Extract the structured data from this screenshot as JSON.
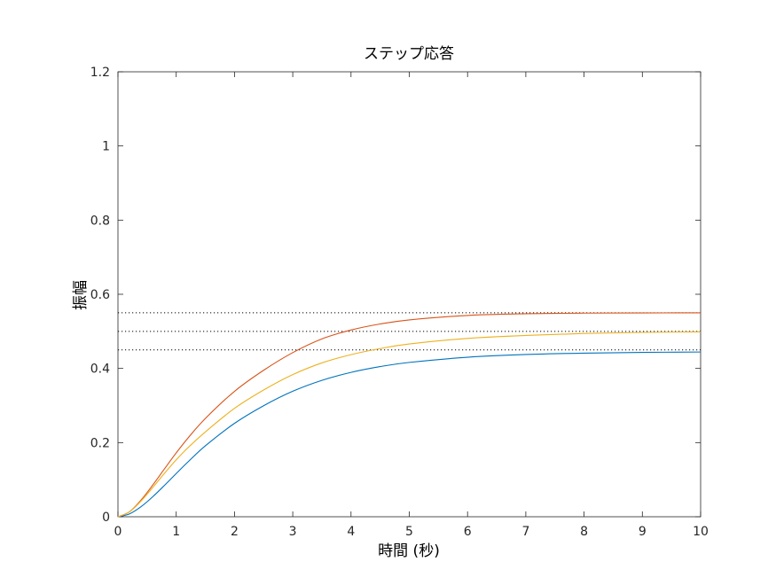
{
  "chart_data": {
    "type": "line",
    "title": "ステップ応答",
    "xlabel": "時間 (秒)",
    "ylabel": "振幅",
    "xlim": [
      0,
      10
    ],
    "ylim": [
      0,
      1.2
    ],
    "xticks": [
      0,
      1,
      2,
      3,
      4,
      5,
      6,
      7,
      8,
      9,
      10
    ],
    "xtick_labels": [
      "0",
      "1",
      "2",
      "3",
      "4",
      "5",
      "6",
      "7",
      "8",
      "9",
      "10"
    ],
    "yticks": [
      0,
      0.2,
      0.4,
      0.6,
      0.8,
      1,
      1.2
    ],
    "ytick_labels": [
      "0",
      "0.2",
      "0.4",
      "0.6",
      "0.8",
      "1",
      "1.2"
    ],
    "grid": false,
    "series": [
      {
        "color": "#0072BD",
        "steady_state": 0.45,
        "x": [
          0,
          0.2,
          0.4,
          0.6,
          0.8,
          1.0,
          1.2,
          1.5,
          2.0,
          2.5,
          3.0,
          3.5,
          4.0,
          4.5,
          5.0,
          6.0,
          7.0,
          8.0,
          9.0,
          10.0
        ],
        "values": [
          0,
          0.0079,
          0.0276,
          0.0544,
          0.0849,
          0.1166,
          0.1476,
          0.1913,
          0.2519,
          0.2995,
          0.3385,
          0.3679,
          0.3894,
          0.405,
          0.4162,
          0.4302,
          0.4375,
          0.4413,
          0.4433,
          0.4443
        ]
      },
      {
        "color": "#D95319",
        "steady_state": 0.55,
        "x": [
          0,
          0.2,
          0.4,
          0.6,
          0.8,
          1.0,
          1.2,
          1.5,
          2.0,
          2.5,
          3.0,
          3.5,
          4.0,
          4.5,
          5.0,
          6.0,
          7.0,
          8.0,
          9.0,
          10.0
        ],
        "values": [
          0,
          0.0137,
          0.0458,
          0.0861,
          0.1295,
          0.1722,
          0.2119,
          0.265,
          0.3382,
          0.395,
          0.4427,
          0.4797,
          0.5036,
          0.5199,
          0.5309,
          0.5429,
          0.5475,
          0.5492,
          0.5497,
          0.5499
        ]
      },
      {
        "color": "#EDB120",
        "steady_state": 0.5,
        "x": [
          0,
          0.2,
          0.4,
          0.6,
          0.8,
          1.0,
          1.2,
          1.5,
          2.0,
          2.5,
          3.0,
          3.5,
          4.0,
          4.5,
          5.0,
          6.0,
          7.0,
          8.0,
          9.0,
          10.0
        ],
        "values": [
          0,
          0.0132,
          0.043,
          0.0795,
          0.1175,
          0.1536,
          0.186,
          0.2288,
          0.2923,
          0.3418,
          0.3833,
          0.4149,
          0.4372,
          0.4536,
          0.466,
          0.481,
          0.489,
          0.4943,
          0.4972,
          0.4986
        ]
      }
    ]
  }
}
